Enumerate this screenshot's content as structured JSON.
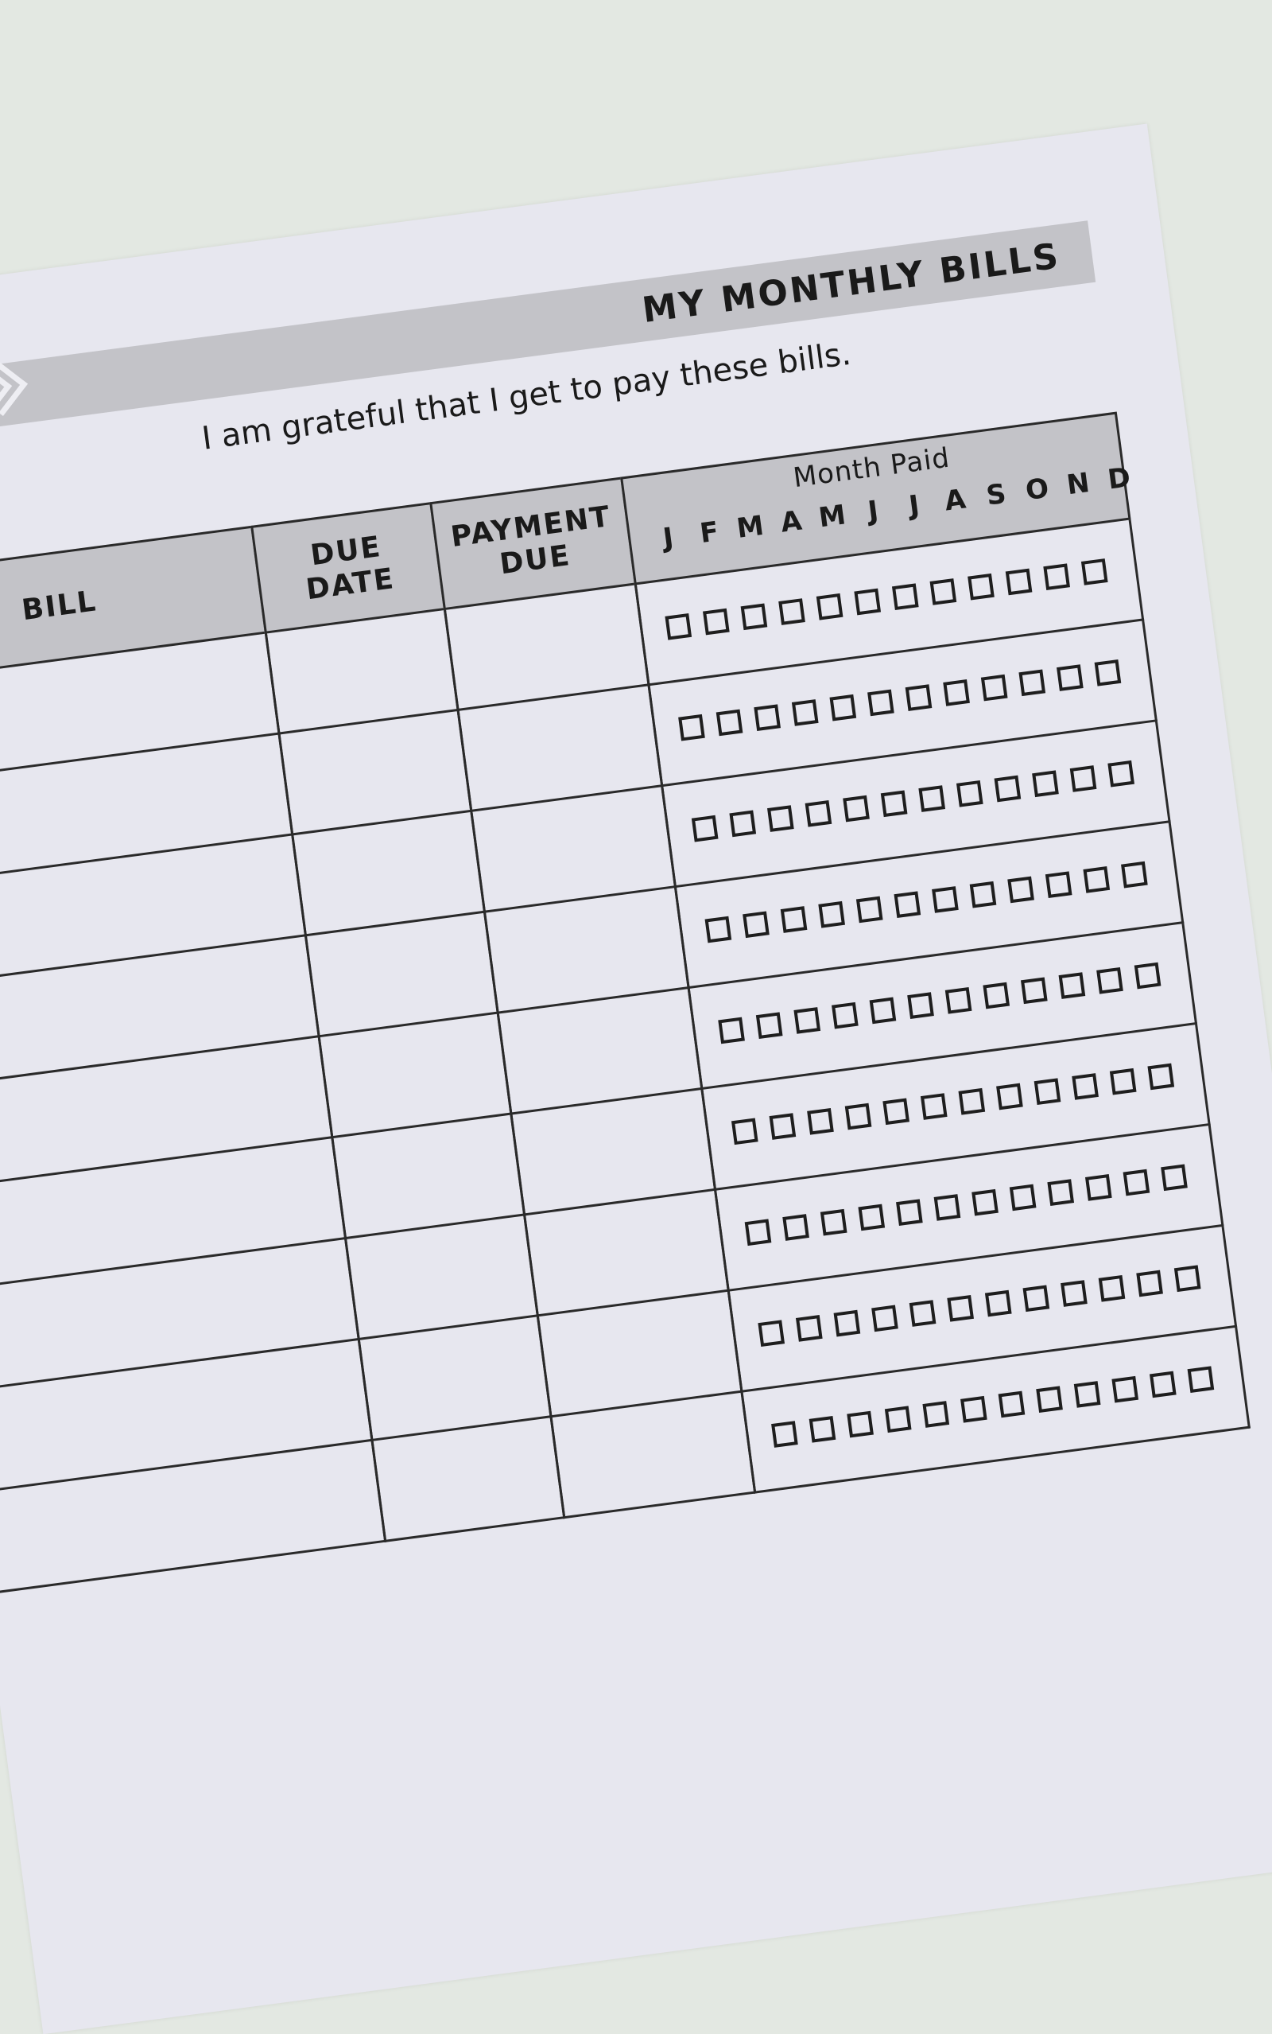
{
  "header": {
    "title": "MY MONTHLY BILLS"
  },
  "subtitle": "I am grateful that I get to pay these bills.",
  "table": {
    "columns": {
      "bill": "BILL",
      "due_date": "DUE DATE",
      "payment_due": "PAYMENT DUE",
      "month_paid": "Month Paid"
    },
    "months": [
      "J",
      "F",
      "M",
      "A",
      "M",
      "J",
      "J",
      "A",
      "S",
      "O",
      "N",
      "D"
    ],
    "rows": [
      {},
      {},
      {},
      {},
      {},
      {},
      {},
      {},
      {}
    ]
  },
  "colors": {
    "band": "#c3c3c8",
    "paper": "#e7e7ef",
    "background": "#e3e8e2",
    "ink": "#1a1a1a"
  }
}
